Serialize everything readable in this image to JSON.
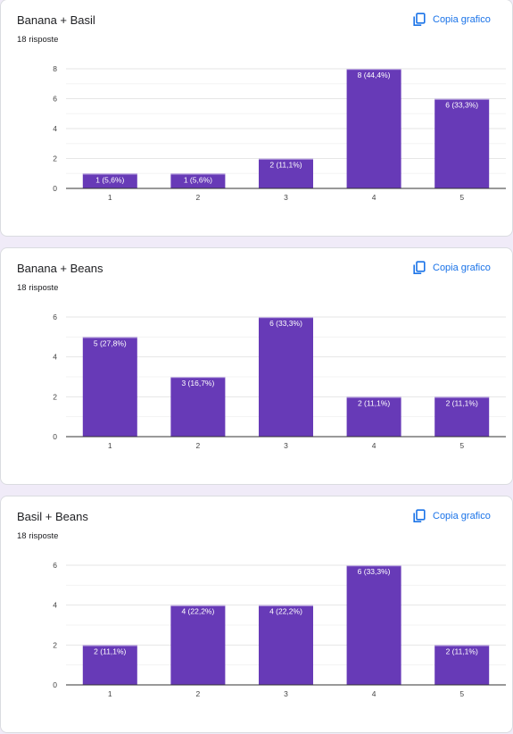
{
  "copy_label": "Copia grafico",
  "colors": {
    "bar": "#673ab7",
    "grid": "#e6e6e6",
    "axis": "#333333",
    "accent": "#1a73e8"
  },
  "icons": {
    "copy": "copy-icon"
  },
  "cards": [
    {
      "title": "Banana + Basil",
      "subtitle": "18 risposte"
    },
    {
      "title": "Banana + Beans",
      "subtitle": "18 risposte"
    },
    {
      "title": "Basil + Beans",
      "subtitle": "18 risposte"
    }
  ],
  "chart_data": [
    {
      "type": "bar",
      "title": "Banana + Basil",
      "categories": [
        "1",
        "2",
        "3",
        "4",
        "5"
      ],
      "values": [
        1,
        1,
        2,
        8,
        6
      ],
      "data_labels": [
        "1 (5,6%)",
        "1 (5,6%)",
        "2 (11,1%)",
        "8 (44,4%)",
        "6 (33,3%)"
      ],
      "ylim": [
        0,
        8
      ],
      "yticks": [
        "0",
        "2",
        "4",
        "6",
        "8"
      ],
      "grid": true
    },
    {
      "type": "bar",
      "title": "Banana + Beans",
      "categories": [
        "1",
        "2",
        "3",
        "4",
        "5"
      ],
      "values": [
        5,
        3,
        6,
        2,
        2
      ],
      "data_labels": [
        "5 (27,8%)",
        "3 (16,7%)",
        "6 (33,3%)",
        "2 (11,1%)",
        "2 (11,1%)"
      ],
      "ylim": [
        0,
        6
      ],
      "yticks": [
        "0",
        "2",
        "4",
        "6"
      ],
      "grid": true
    },
    {
      "type": "bar",
      "title": "Basil + Beans",
      "categories": [
        "1",
        "2",
        "3",
        "4",
        "5"
      ],
      "values": [
        2,
        4,
        4,
        6,
        2
      ],
      "data_labels": [
        "2 (11,1%)",
        "4 (22,2%)",
        "4 (22,2%)",
        "6 (33,3%)",
        "2 (11,1%)"
      ],
      "ylim": [
        0,
        6
      ],
      "yticks": [
        "0",
        "2",
        "4",
        "6"
      ],
      "grid": true
    }
  ]
}
